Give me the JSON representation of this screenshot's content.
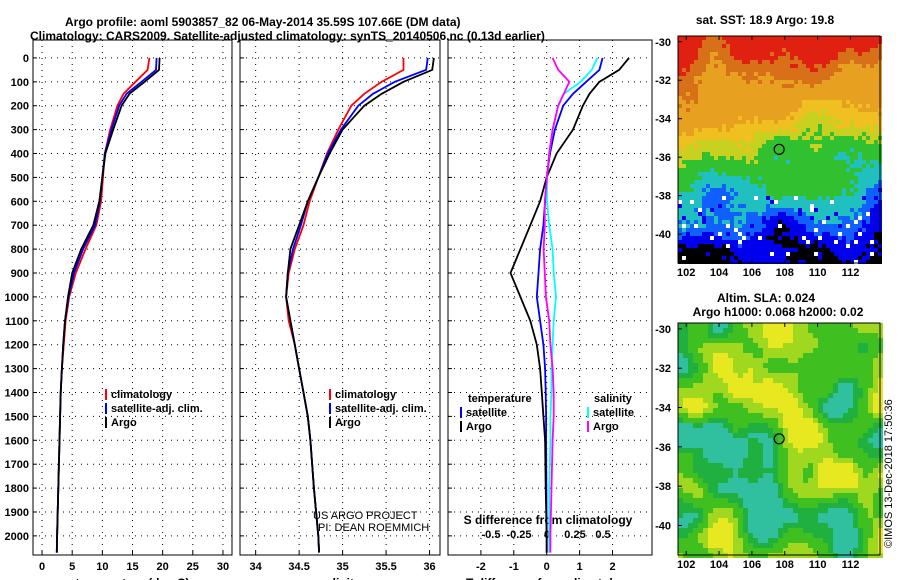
{
  "title_line1": "Argo profile: aoml 5903857_82 06-May-2014 35.59S 107.66E (DM data)",
  "title_line2": "Climatology: CARS2009. Satellite-adjusted climatology: synTS_20140506.nc (0.13d earlier)",
  "credit": "©IMOS 13-Dec-2018 17:50:36",
  "project": [
    "US ARGO PROJECT",
    "PI: DEAN ROEMMICH"
  ],
  "colors": {
    "climatology": "#ff0000",
    "satellite": "#0000ff",
    "argo": "#000000",
    "sal_sat": "#00ffff",
    "sal_argo": "#ff00ff"
  },
  "chart_data": [
    {
      "type": "line",
      "title": "temperature",
      "xlabel": "temperature (deg C)",
      "ylabel": "depth",
      "xlim": [
        -1.5,
        31.5
      ],
      "ylim": [
        2080,
        -75
      ],
      "xticks": [
        "0",
        "5",
        "10",
        "15",
        "20",
        "25",
        "30"
      ],
      "xtick_values": [
        0,
        5,
        10,
        15,
        20,
        25,
        30
      ],
      "yticks": [
        "0",
        "100",
        "200",
        "300",
        "400",
        "500",
        "600",
        "700",
        "800",
        "900",
        "1000",
        "1100",
        "1200",
        "1300",
        "1400",
        "1500",
        "1600",
        "1700",
        "1800",
        "1900",
        "2000"
      ],
      "depth": [
        0,
        50,
        100,
        150,
        200,
        300,
        400,
        500,
        600,
        700,
        800,
        900,
        1000,
        1100,
        1200,
        1300,
        1400,
        1500,
        1600,
        1800,
        2000,
        2070
      ],
      "legend": [
        "climatology",
        "satellite-adj. clim.",
        "Argo"
      ],
      "series": [
        {
          "name": "climatology",
          "values": [
            17.8,
            17.5,
            15.5,
            13.5,
            12.5,
            11.3,
            10.4,
            10.1,
            9.8,
            9.0,
            7.2,
            5.6,
            4.5,
            3.9,
            3.6,
            3.3,
            3.1,
            3.0,
            2.9,
            2.7,
            2.5,
            2.45
          ]
        },
        {
          "name": "satellite-adj. clim.",
          "values": [
            19.0,
            18.9,
            16.5,
            14.0,
            12.8,
            11.5,
            10.4,
            10.0,
            9.6,
            8.8,
            6.8,
            5.3,
            4.4,
            3.8,
            3.5,
            3.3,
            3.1,
            3.0,
            2.9,
            2.7,
            2.5,
            2.45
          ]
        },
        {
          "name": "Argo",
          "values": [
            19.5,
            19.4,
            17.0,
            14.5,
            13.2,
            11.8,
            10.5,
            10.0,
            9.5,
            8.5,
            6.5,
            5.0,
            4.3,
            3.8,
            3.5,
            3.3,
            3.1,
            3.0,
            2.9,
            2.7,
            2.5,
            2.45
          ]
        }
      ]
    },
    {
      "type": "line",
      "title": "salinity",
      "xlabel": "salinity",
      "xlim": [
        33.82,
        36.12
      ],
      "ylim": [
        2080,
        -75
      ],
      "xticks": [
        "34",
        "34.5",
        "35",
        "35.5",
        "36"
      ],
      "xtick_values": [
        34,
        34.5,
        35,
        35.5,
        36
      ],
      "depth": [
        0,
        50,
        100,
        150,
        200,
        300,
        400,
        500,
        600,
        700,
        800,
        900,
        1000,
        1100,
        1200,
        1300,
        1400,
        1500,
        1600,
        1800,
        2000,
        2070
      ],
      "legend": [
        "climatology",
        "satellite-adj. clim.",
        "Argo"
      ],
      "series": [
        {
          "name": "climatology",
          "values": [
            35.7,
            35.7,
            35.45,
            35.25,
            35.1,
            34.95,
            34.82,
            34.72,
            34.62,
            34.55,
            34.45,
            34.38,
            34.35,
            34.38,
            34.45,
            34.5,
            34.55,
            34.6,
            34.63,
            34.67,
            34.72,
            34.73
          ]
        },
        {
          "name": "satellite-adj. clim.",
          "values": [
            35.98,
            35.96,
            35.6,
            35.35,
            35.18,
            34.98,
            34.83,
            34.72,
            34.6,
            34.52,
            34.43,
            34.37,
            34.35,
            34.4,
            34.45,
            34.5,
            34.55,
            34.6,
            34.63,
            34.67,
            34.72,
            34.73
          ]
        },
        {
          "name": "Argo",
          "values": [
            36.05,
            36.03,
            35.7,
            35.45,
            35.25,
            35.0,
            34.85,
            34.72,
            34.6,
            34.5,
            34.4,
            34.37,
            34.35,
            34.4,
            34.45,
            34.5,
            34.55,
            34.6,
            34.63,
            34.67,
            34.72,
            34.73
          ]
        }
      ]
    },
    {
      "type": "line",
      "title": "differences",
      "xlabel": "T difference from climatology",
      "xlabel2": "S difference from climatology",
      "xlim": [
        -3.0,
        3.2
      ],
      "ylim": [
        2080,
        -75
      ],
      "xticks": [
        "-2",
        "-1",
        "0",
        "1",
        "2"
      ],
      "xtick_values": [
        -2,
        -1,
        0,
        1,
        2
      ],
      "xticks2": [
        "-0.5",
        "-0.25",
        "0",
        "0.25",
        "0.5"
      ],
      "xtick2_values": [
        -0.5,
        -0.25,
        0,
        0.25,
        0.5
      ],
      "legend_t_title": "temperature",
      "legend_s_title": "salinity",
      "legend": [
        "satellite",
        "Argo",
        "satellite",
        "Argo"
      ],
      "depth": [
        0,
        50,
        100,
        150,
        200,
        300,
        400,
        500,
        600,
        700,
        800,
        900,
        1000,
        1100,
        1200,
        1300,
        1400,
        1500,
        1600,
        1800,
        2000,
        2070
      ],
      "series": [
        {
          "name": "T satellite",
          "axis": "T",
          "values": [
            1.7,
            1.6,
            1.2,
            0.8,
            0.5,
            0.25,
            0.1,
            0.0,
            -0.05,
            -0.1,
            -0.2,
            -0.25,
            -0.3,
            -0.2,
            -0.1,
            -0.05,
            -0.03,
            -0.02,
            -0.02,
            -0.01,
            0,
            0
          ]
        },
        {
          "name": "T Argo",
          "axis": "T",
          "values": [
            2.5,
            2.2,
            1.6,
            1.3,
            1.1,
            0.8,
            0.3,
            0.0,
            -0.2,
            -0.5,
            -0.8,
            -1.1,
            -0.8,
            -0.5,
            -0.3,
            -0.2,
            -0.15,
            -0.1,
            -0.05,
            -0.03,
            0,
            0
          ]
        },
        {
          "name": "S satellite",
          "axis": "S",
          "values": [
            0.45,
            0.4,
            0.3,
            0.15,
            0.1,
            0.05,
            0.02,
            0.0,
            0.0,
            0.02,
            0.05,
            0.06,
            0.08,
            0.06,
            0.05,
            0.04,
            0.04,
            0.03,
            0.03,
            0.02,
            0.02,
            0.02
          ]
        },
        {
          "name": "S Argo",
          "axis": "S",
          "values": [
            0.05,
            0.1,
            0.2,
            0.15,
            0.1,
            0.05,
            0.02,
            0.0,
            -0.02,
            -0.02,
            -0.03,
            -0.02,
            -0.01,
            0.02,
            0.03,
            0.05,
            0.06,
            0.06,
            0.05,
            0.04,
            0.03,
            0.03
          ]
        }
      ]
    },
    {
      "type": "heatmap",
      "title": "sat. SST: 18.9 Argo: 19.8",
      "xticks": [
        "102",
        "104",
        "106",
        "108",
        "110",
        "112"
      ],
      "yticks": [
        "-30",
        "-32",
        "-34",
        "-36",
        "-38",
        "-40"
      ],
      "xlim": [
        101.5,
        113.8
      ],
      "ylim": [
        -41.5,
        -29.7
      ],
      "marker": {
        "lon": 107.66,
        "lat": -35.59
      }
    },
    {
      "type": "heatmap",
      "title": "Altim. SLA: 0.024",
      "subtitle": "Argo h1000: 0.068 h2000: 0.02",
      "xticks": [
        "102",
        "104",
        "106",
        "108",
        "110",
        "112"
      ],
      "yticks": [
        "-30",
        "-32",
        "-34",
        "-36",
        "-38",
        "-40"
      ],
      "xlim": [
        101.5,
        113.8
      ],
      "ylim": [
        -41.5,
        -29.7
      ],
      "marker": {
        "lon": 107.66,
        "lat": -35.59
      }
    }
  ]
}
